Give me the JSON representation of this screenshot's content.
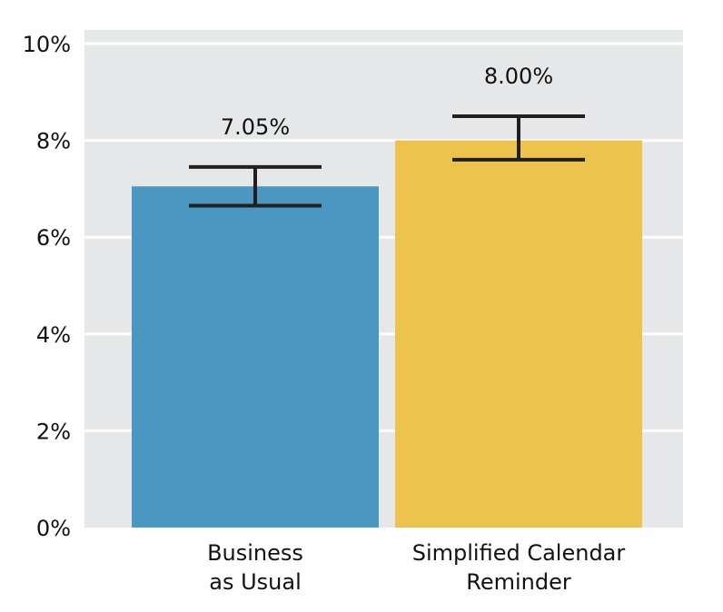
{
  "chart_data": {
    "type": "bar",
    "categories": [
      [
        "Business",
        "as Usual"
      ],
      [
        "Simplified Calendar",
        "Reminder"
      ]
    ],
    "values": [
      7.05,
      8.0
    ],
    "value_labels": [
      "7.05%",
      "8.00%"
    ],
    "error_bars": [
      {
        "low": 6.65,
        "high": 7.45
      },
      {
        "low": 7.6,
        "high": 8.5
      }
    ],
    "colors": [
      "#4a97c2",
      "#ecc34d"
    ],
    "ylim": [
      0,
      10
    ],
    "yticks": [
      0,
      2,
      4,
      6,
      8,
      10
    ],
    "ytick_labels": [
      "0%",
      "2%",
      "4%",
      "6%",
      "8%",
      "10%"
    ],
    "grid": true,
    "background": "#e6e7e8",
    "title": "",
    "xlabel": "",
    "ylabel": ""
  }
}
